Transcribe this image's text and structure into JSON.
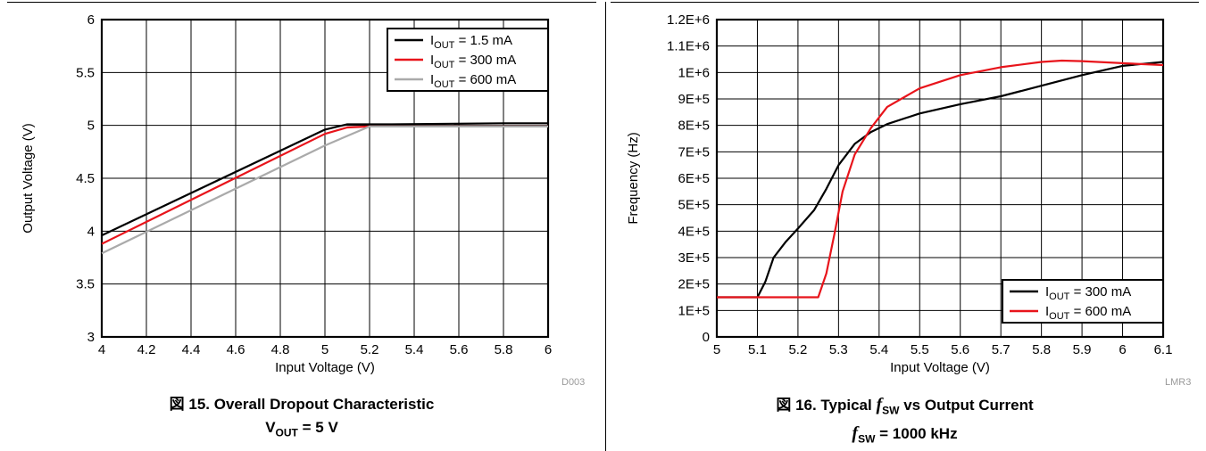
{
  "figure_left": {
    "caption_line1": "図 15. Overall Dropout Characteristic",
    "caption_line2_main": "V",
    "caption_line2_sub": "OUT",
    "caption_line2_tail": " = 5 V",
    "code": "D003"
  },
  "figure_right": {
    "caption_line1_pre": "図 16. Typical ",
    "caption_line1_f": "f",
    "caption_line1_sub": "SW",
    "caption_line1_post": " vs Output Current",
    "caption_line2_f": "f",
    "caption_line2_sub": "SW",
    "caption_line2_post": " = 1000 kHz",
    "code": "LMR3"
  },
  "chart_data": [
    {
      "type": "line",
      "title": "",
      "xlabel": "Input Voltage (V)",
      "ylabel": "Output Voltage (V)",
      "xlim": [
        4,
        6
      ],
      "ylim": [
        3,
        6
      ],
      "x_ticks": [
        "4",
        "4.2",
        "4.4",
        "4.6",
        "4.8",
        "5",
        "5.2",
        "5.4",
        "5.6",
        "5.8",
        "6"
      ],
      "y_ticks": [
        "3",
        "3.5",
        "4",
        "4.5",
        "5",
        "5.5",
        "6"
      ],
      "grid": true,
      "legend_position": "top-right",
      "series": [
        {
          "name_main": "I",
          "name_sub": "OUT",
          "name_tail": " = 1.5 mA",
          "color": "#000000",
          "points": [
            [
              4.0,
              3.96
            ],
            [
              5.0,
              4.96
            ],
            [
              5.1,
              5.01
            ],
            [
              5.3,
              5.01
            ],
            [
              5.8,
              5.02
            ],
            [
              6.0,
              5.02
            ]
          ]
        },
        {
          "name_main": "I",
          "name_sub": "OUT",
          "name_tail": " = 300 mA",
          "color": "#e8141b",
          "points": [
            [
              4.0,
              3.88
            ],
            [
              5.0,
              4.92
            ],
            [
              5.1,
              4.98
            ],
            [
              5.2,
              4.99
            ],
            [
              6.0,
              4.99
            ]
          ]
        },
        {
          "name_main": "I",
          "name_sub": "OUT",
          "name_tail": " = 600 mA",
          "color": "#aaaaaa",
          "points": [
            [
              4.0,
              3.79
            ],
            [
              5.0,
              4.81
            ],
            [
              5.2,
              4.99
            ],
            [
              6.0,
              4.99
            ]
          ]
        }
      ]
    },
    {
      "type": "line",
      "title": "",
      "xlabel": "Input Voltage (V)",
      "ylabel": "Frequency (Hz)",
      "xlim": [
        5,
        6.1
      ],
      "ylim": [
        0,
        1200000
      ],
      "x_ticks": [
        "5",
        "5.1",
        "5.2",
        "5.3",
        "5.4",
        "5.5",
        "5.6",
        "5.7",
        "5.8",
        "5.9",
        "6",
        "6.1"
      ],
      "y_ticks": [
        "0",
        "1E+5",
        "2E+5",
        "3E+5",
        "4E+5",
        "5E+5",
        "6E+5",
        "7E+5",
        "8E+5",
        "9E+5",
        "1E+6",
        "1.1E+6",
        "1.2E+6"
      ],
      "grid": true,
      "legend_position": "bottom-right",
      "series": [
        {
          "name_main": "I",
          "name_sub": "OUT",
          "name_tail": " = 300 mA",
          "color": "#000000",
          "points": [
            [
              5.0,
              150000
            ],
            [
              5.1,
              150000
            ],
            [
              5.12,
              210000
            ],
            [
              5.14,
              300000
            ],
            [
              5.17,
              360000
            ],
            [
              5.2,
              410000
            ],
            [
              5.24,
              480000
            ],
            [
              5.27,
              560000
            ],
            [
              5.3,
              650000
            ],
            [
              5.34,
              730000
            ],
            [
              5.38,
              775000
            ],
            [
              5.42,
              805000
            ],
            [
              5.5,
              845000
            ],
            [
              5.6,
              880000
            ],
            [
              5.7,
              910000
            ],
            [
              5.8,
              950000
            ],
            [
              5.9,
              990000
            ],
            [
              6.0,
              1025000
            ],
            [
              6.1,
              1040000
            ]
          ]
        },
        {
          "name_main": "I",
          "name_sub": "OUT",
          "name_tail": " = 600 mA",
          "color": "#e8141b",
          "points": [
            [
              5.0,
              150000
            ],
            [
              5.25,
              150000
            ],
            [
              5.27,
              240000
            ],
            [
              5.29,
              390000
            ],
            [
              5.31,
              550000
            ],
            [
              5.34,
              690000
            ],
            [
              5.38,
              790000
            ],
            [
              5.42,
              870000
            ],
            [
              5.5,
              940000
            ],
            [
              5.6,
              990000
            ],
            [
              5.7,
              1020000
            ],
            [
              5.8,
              1040000
            ],
            [
              5.85,
              1045000
            ],
            [
              5.9,
              1043000
            ],
            [
              6.0,
              1035000
            ],
            [
              6.1,
              1028000
            ]
          ]
        }
      ]
    }
  ]
}
